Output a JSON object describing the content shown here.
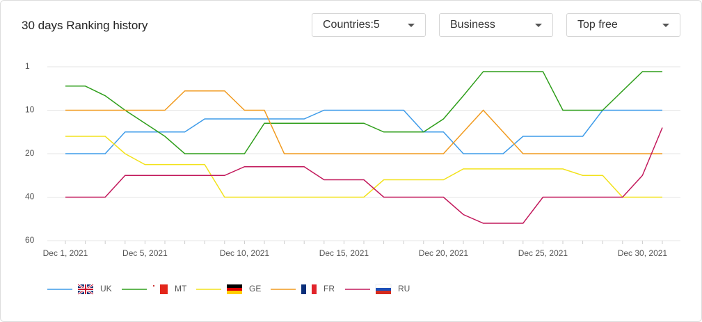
{
  "header": {
    "title": "30 days Ranking history",
    "filters": [
      "Countries:5",
      "Business",
      "Top free"
    ]
  },
  "chart_data": {
    "type": "line",
    "yscale": "ticks",
    "yreverse": true,
    "grid": true,
    "categories": [
      "Dec 1, 2021",
      null,
      null,
      null,
      "Dec 5, 2021",
      null,
      null,
      null,
      null,
      "Dec 10, 2021",
      null,
      null,
      null,
      null,
      "Dec 15, 2021",
      null,
      null,
      null,
      null,
      "Dec 20, 2021",
      null,
      null,
      null,
      null,
      "Dec 25, 2021",
      null,
      null,
      null,
      null,
      "Dec 30, 2021",
      null
    ],
    "ylim": [
      1,
      60
    ],
    "yticks": [
      1,
      10,
      20,
      40,
      60
    ],
    "series": [
      {
        "name": "UK",
        "color": "#3d9be9",
        "values": [
          20,
          20,
          20,
          15,
          15,
          15,
          15,
          12,
          12,
          12,
          12,
          12,
          12,
          10,
          10,
          10,
          10,
          10,
          15,
          15,
          20,
          20,
          20,
          16,
          16,
          16,
          16,
          10,
          10,
          10,
          10
        ]
      },
      {
        "name": "MT",
        "color": "#2e9e1a",
        "values": [
          5,
          5,
          7,
          10,
          13,
          16,
          20,
          20,
          20,
          20,
          13,
          13,
          13,
          13,
          13,
          13,
          15,
          15,
          15,
          12,
          7,
          2,
          2,
          2,
          2,
          10,
          10,
          10,
          6,
          2,
          2
        ]
      },
      {
        "name": "GE",
        "color": "#f2e21c",
        "values": [
          16,
          16,
          16,
          20,
          25,
          25,
          25,
          25,
          40,
          40,
          40,
          40,
          40,
          40,
          40,
          40,
          32,
          32,
          32,
          32,
          27,
          27,
          27,
          27,
          27,
          27,
          30,
          30,
          40,
          40,
          40
        ]
      },
      {
        "name": "FR",
        "color": "#f19a1e",
        "values": [
          10,
          10,
          10,
          10,
          10,
          10,
          6,
          6,
          6,
          10,
          10,
          20,
          20,
          20,
          20,
          20,
          20,
          20,
          20,
          20,
          15,
          10,
          15,
          20,
          20,
          20,
          20,
          20,
          20,
          20,
          20
        ]
      },
      {
        "name": "RU",
        "color": "#c2185b",
        "values": [
          40,
          40,
          40,
          30,
          30,
          30,
          30,
          30,
          30,
          26,
          26,
          26,
          26,
          32,
          32,
          32,
          40,
          40,
          40,
          40,
          48,
          52,
          52,
          52,
          40,
          40,
          40,
          40,
          40,
          30,
          14
        ]
      }
    ]
  }
}
